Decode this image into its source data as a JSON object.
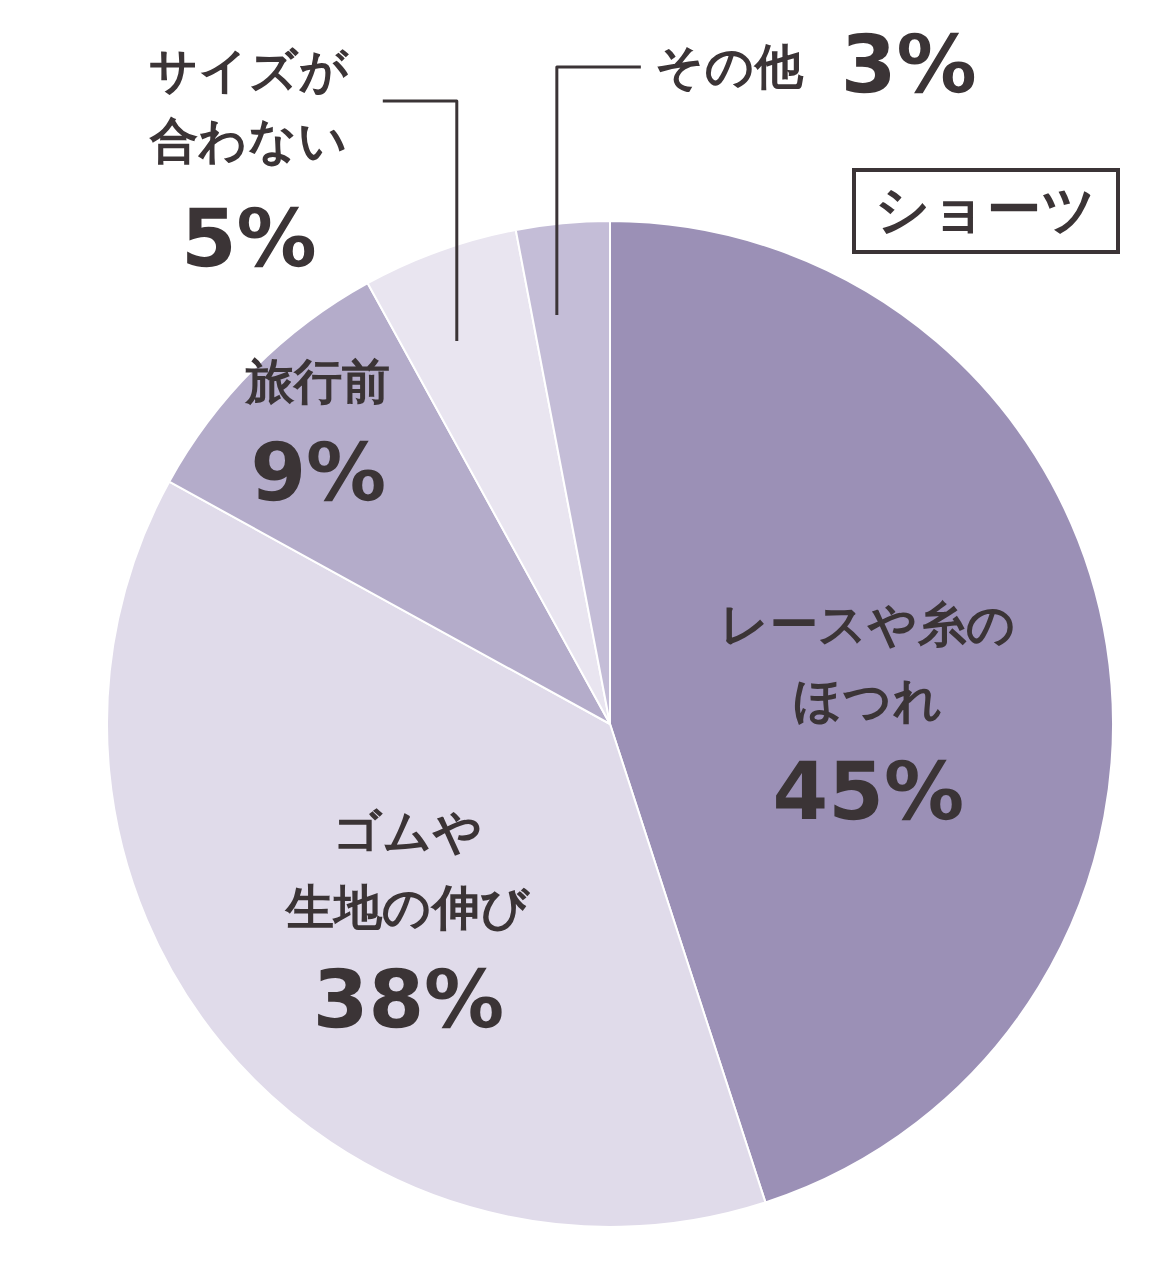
{
  "chart_data": {
    "type": "pie",
    "title": "ショーツ",
    "categories": [
      "レースや糸のほつれ",
      "ゴムや生地の伸び",
      "旅行前",
      "サイズが合わない",
      "その他"
    ],
    "values": [
      45,
      38,
      9,
      5,
      3
    ],
    "value_labels": [
      "45%",
      "38%",
      "9%",
      "5%",
      "3%"
    ],
    "colors": [
      "#9b90b6",
      "#e0dbea",
      "#b4acca",
      "#e9e5f0",
      "#c4bdd7"
    ]
  }
}
